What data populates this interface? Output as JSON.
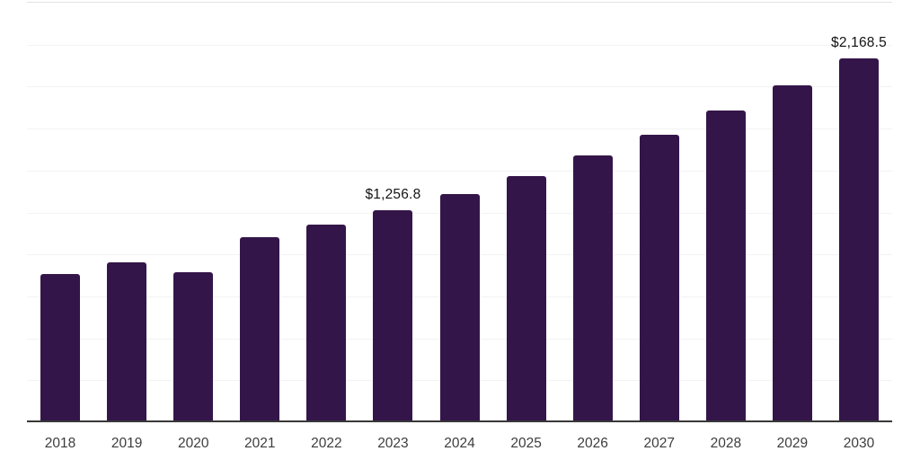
{
  "chart_data": {
    "type": "bar",
    "title": "",
    "xlabel": "",
    "ylabel": "",
    "categories": [
      "2018",
      "2019",
      "2020",
      "2021",
      "2022",
      "2023",
      "2024",
      "2025",
      "2026",
      "2027",
      "2028",
      "2029",
      "2030"
    ],
    "values": [
      875,
      948,
      889,
      1095,
      1170,
      1256.8,
      1356,
      1463,
      1586,
      1709,
      1853,
      2003,
      2168.5
    ],
    "data_labels": {
      "2023": "$1,256.8",
      "2030": "$2,168.5"
    },
    "ylim": [
      0,
      2500
    ],
    "gridline_step": 250,
    "grid": true,
    "legend": false,
    "colors": {
      "bar": "#341549",
      "axis_line": "#383838",
      "gridline": "#f3f3f3",
      "top_border": "#e3e3e3",
      "x_tick_label": "#3d3d3d",
      "value_label": "#141414",
      "background": "#ffffff"
    }
  }
}
